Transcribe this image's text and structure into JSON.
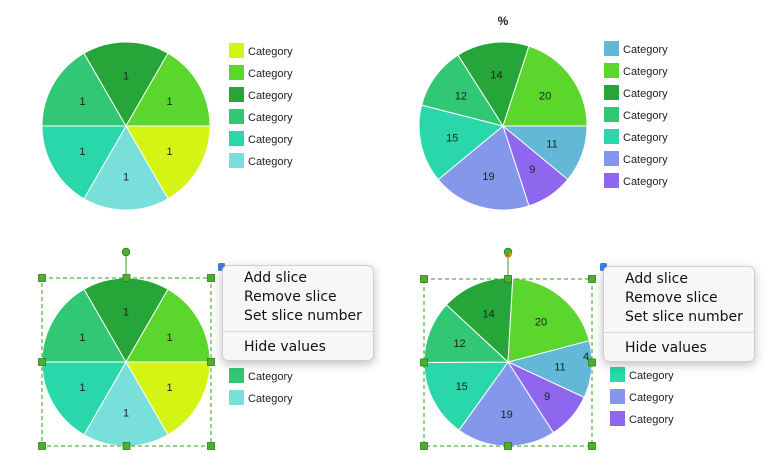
{
  "colors": {
    "c1": "#d4f414",
    "c2": "#5ad62c",
    "c3": "#26a638",
    "c4": "#31c774",
    "c5": "#2ad7aa",
    "c6": "#79dfdb",
    "c7": "#62b8d6",
    "c8": "#8497ea",
    "c9": "#8f66ee",
    "handle": "#4caf2d",
    "selection": "#33a020"
  },
  "legend_label": "Category",
  "charts": [
    {
      "id": "chart-a",
      "title": "",
      "slices": [
        {
          "label": "1",
          "value": 1,
          "color": "#d4f414"
        },
        {
          "label": "1",
          "value": 1,
          "color": "#79dfdb"
        },
        {
          "label": "1",
          "value": 1,
          "color": "#2ad7aa"
        },
        {
          "label": "1",
          "value": 1,
          "color": "#31c774"
        },
        {
          "label": "1",
          "value": 1,
          "color": "#26a638"
        },
        {
          "label": "1",
          "value": 1,
          "color": "#5ad62c"
        }
      ],
      "legend": [
        "#d4f414",
        "#5ad62c",
        "#26a638",
        "#31c774",
        "#2ad7aa",
        "#79dfdb"
      ]
    },
    {
      "id": "chart-b",
      "title": "%",
      "slices": [
        {
          "label": "11",
          "value": 11,
          "color": "#62b8d6"
        },
        {
          "label": "9",
          "value": 9,
          "color": "#8f66ee"
        },
        {
          "label": "19",
          "value": 19,
          "color": "#8497ea"
        },
        {
          "label": "15",
          "value": 15,
          "color": "#2ad7aa"
        },
        {
          "label": "12",
          "value": 12,
          "color": "#31c774"
        },
        {
          "label": "14",
          "value": 14,
          "color": "#26a638"
        },
        {
          "label": "20",
          "value": 20,
          "color": "#5ad62c"
        }
      ],
      "legend": [
        "#62b8d6",
        "#5ad62c",
        "#26a638",
        "#31c774",
        "#2ad7aa",
        "#8497ea",
        "#8f66ee"
      ]
    },
    {
      "id": "chart-c",
      "title": "",
      "slices": [
        {
          "label": "1",
          "value": 1,
          "color": "#d4f414"
        },
        {
          "label": "1",
          "value": 1,
          "color": "#79dfdb"
        },
        {
          "label": "1",
          "value": 1,
          "color": "#2ad7aa"
        },
        {
          "label": "1",
          "value": 1,
          "color": "#31c774"
        },
        {
          "label": "1",
          "value": 1,
          "color": "#26a638"
        },
        {
          "label": "1",
          "value": 1,
          "color": "#5ad62c"
        }
      ],
      "legend": [
        "#31c774",
        "#79dfdb"
      ]
    },
    {
      "id": "chart-d",
      "title": "",
      "slices": [
        {
          "label": "11",
          "value": 11,
          "color": "#62b8d6"
        },
        {
          "label": "9",
          "value": 9,
          "color": "#8f66ee"
        },
        {
          "label": "19",
          "value": 19,
          "color": "#8497ea"
        },
        {
          "label": "15",
          "value": 15,
          "color": "#2ad7aa"
        },
        {
          "label": "12",
          "value": 12,
          "color": "#31c774"
        },
        {
          "label": "14",
          "value": 14,
          "color": "#26a638"
        },
        {
          "label": "20",
          "value": 20,
          "color": "#5ad62c"
        }
      ],
      "legend": [
        "#2ad7aa",
        "#8497ea",
        "#8f66ee"
      ]
    }
  ],
  "context_menu": {
    "add_slice": "Add slice",
    "remove_slice": "Remove slice",
    "set_slice_number": "Set slice number",
    "hide_values": "Hide values"
  },
  "peek_label": "4",
  "chart_data": [
    {
      "type": "pie",
      "title": "",
      "categories": [
        "Category",
        "Category",
        "Category",
        "Category",
        "Category",
        "Category"
      ],
      "values": [
        1,
        1,
        1,
        1,
        1,
        1
      ]
    },
    {
      "type": "pie",
      "title": "%",
      "categories": [
        "Category",
        "Category",
        "Category",
        "Category",
        "Category",
        "Category",
        "Category"
      ],
      "values": [
        11,
        9,
        19,
        15,
        12,
        14,
        20
      ]
    },
    {
      "type": "pie",
      "title": "",
      "categories": [
        "Category",
        "Category",
        "Category",
        "Category",
        "Category",
        "Category"
      ],
      "values": [
        1,
        1,
        1,
        1,
        1,
        1
      ]
    },
    {
      "type": "pie",
      "title": "",
      "categories": [
        "Category",
        "Category",
        "Category",
        "Category",
        "Category",
        "Category",
        "Category"
      ],
      "values": [
        11,
        9,
        19,
        15,
        12,
        14,
        20
      ]
    }
  ]
}
